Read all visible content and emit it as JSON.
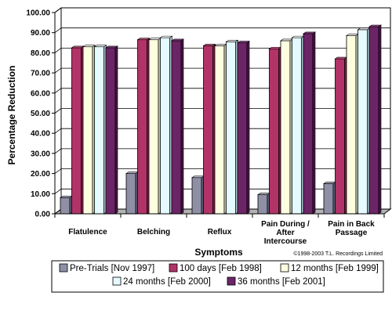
{
  "chart_data": {
    "type": "bar",
    "title": "",
    "xlabel": "Symptoms",
    "ylabel": "Percentage Reduction",
    "ylim": [
      0,
      100
    ],
    "yticks": [
      "0.00",
      "10.00",
      "20.00",
      "30.00",
      "40.00",
      "50.00",
      "60.00",
      "70.00",
      "80.00",
      "90.00",
      "100.00"
    ],
    "grid": true,
    "categories": [
      "Flatulence",
      "Belching",
      "Reflux",
      "Pain During / After Intercourse",
      "Pain in Back Passage"
    ],
    "category_lines": [
      [
        "Flatulence"
      ],
      [
        "Belching"
      ],
      [
        "Reflux"
      ],
      [
        "Pain During /",
        "After",
        "Intercourse"
      ],
      [
        "Pain in Back",
        "Passage"
      ]
    ],
    "series": [
      {
        "name": "Pre-Trials [Nov 1997]",
        "values": [
          8,
          20,
          18,
          9.5,
          15
        ]
      },
      {
        "name": "100 days [Feb 1998]",
        "values": [
          82.5,
          86.5,
          83.5,
          82,
          77
        ]
      },
      {
        "name": "12 months [Feb 1999]",
        "values": [
          83,
          86.5,
          83.5,
          86,
          88.5
        ]
      },
      {
        "name": "24 months [Feb 2000]",
        "values": [
          83,
          87.5,
          85.5,
          87.5,
          91.5
        ]
      },
      {
        "name": "36 months [Feb 2001]",
        "values": [
          82.5,
          86,
          85,
          89.5,
          93
        ]
      }
    ],
    "legend_position": "bottom",
    "colors": {
      "series": [
        "#8f8fa6",
        "#b23368",
        "#fdfde0",
        "#e4faff",
        "#6b2567"
      ],
      "series_top": [
        "#b4b4c8",
        "#cf5c8a",
        "#ffffff",
        "#ffffff",
        "#8d4589"
      ],
      "series_side": [
        "#5f5f78",
        "#7a1f46",
        "#c6c6a6",
        "#a8c4cc",
        "#431540"
      ],
      "floor": "#b3b3b3",
      "wall": "#ffffff"
    },
    "credit": "©1998-2003 T.L. Recordings Limited"
  }
}
